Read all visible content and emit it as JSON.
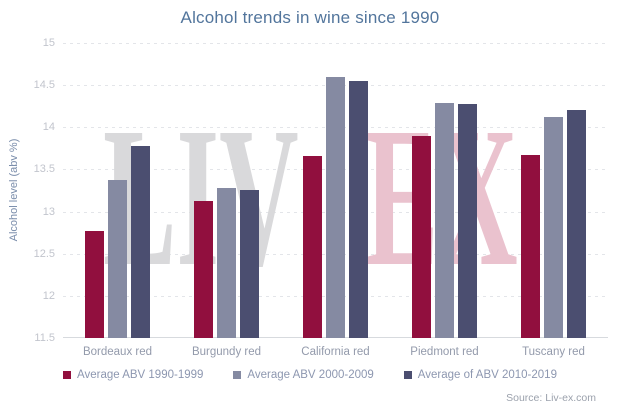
{
  "title": "Alcohol trends in wine since 1990",
  "source": "Source: Liv-ex.com",
  "watermark": {
    "left": "LIV",
    "right": "EX",
    "left_color": "#d9d9db",
    "right_color": "#eac2ce"
  },
  "colors": {
    "title": "#52759c",
    "axis_title": "#7a8dab",
    "tick_label": "#c2c5cd",
    "category_label": "#939aab",
    "legend_text": "#8d97b0",
    "gridline": "#e3e5e9",
    "axis_line": "#d7dade",
    "series_red": "#910f3e",
    "series_gray": "#858aa2",
    "series_navy": "#4b4e70"
  },
  "chart_data": {
    "type": "bar",
    "title": "Alcohol trends in wine since 1990",
    "xlabel": "",
    "ylabel": "Alcohol level (abv %)",
    "ylim": [
      11.5,
      15
    ],
    "yticks": [
      15,
      14.5,
      14,
      13.5,
      13,
      12.5,
      12,
      11.5
    ],
    "grid": "horizontal-dashed",
    "legend_position": "bottom",
    "categories": [
      "Bordeaux red",
      "Burgundy red",
      "California red",
      "Piedmont red",
      "Tuscany red"
    ],
    "series": [
      {
        "name": "Average ABV 1990-1999",
        "color": "#910f3e",
        "values": [
          12.77,
          13.12,
          13.66,
          13.9,
          13.67
        ]
      },
      {
        "name": "Average ABV 2000-2009",
        "color": "#858aa2",
        "values": [
          13.37,
          13.28,
          14.6,
          14.29,
          14.12
        ]
      },
      {
        "name": "Average of ABV 2010-2019",
        "color": "#4b4e70",
        "values": [
          13.78,
          13.26,
          14.55,
          14.28,
          14.2
        ]
      }
    ]
  }
}
